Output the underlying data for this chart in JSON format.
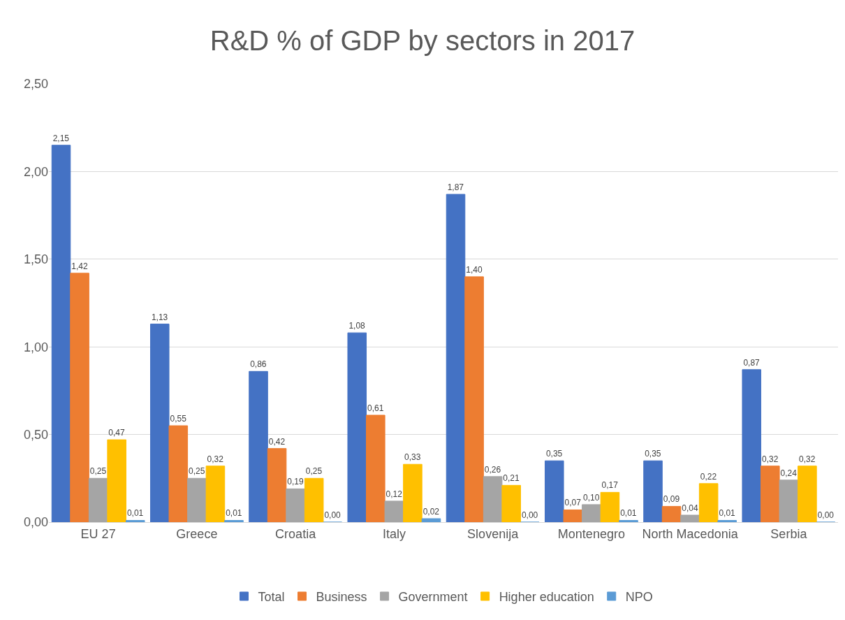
{
  "chart_data": {
    "type": "bar",
    "title": "R&D % of GDP by sectors in 2017",
    "categories": [
      "EU 27",
      "Greece",
      "Croatia",
      "Italy",
      "Slovenija",
      "Montenegro",
      "North Macedonia",
      "Serbia"
    ],
    "series": [
      {
        "name": "Total",
        "color": "#4472c4",
        "values": [
          2.15,
          1.13,
          0.86,
          1.08,
          1.87,
          0.35,
          0.35,
          0.87
        ],
        "value_labels": [
          "2,15",
          "1,13",
          "0,86",
          "1,08",
          "1,87",
          "0,35",
          "0,35",
          "0,87"
        ]
      },
      {
        "name": "Business",
        "color": "#ed7d31",
        "values": [
          1.42,
          0.55,
          0.42,
          0.61,
          1.4,
          0.07,
          0.09,
          0.32
        ],
        "value_labels": [
          "1,42",
          "0,55",
          "0,42",
          "0,61",
          "1,40",
          "0,07",
          "0,09",
          "0,32"
        ]
      },
      {
        "name": "Government",
        "color": "#a5a5a5",
        "values": [
          0.25,
          0.25,
          0.19,
          0.12,
          0.26,
          0.1,
          0.04,
          0.24
        ],
        "value_labels": [
          "0,25",
          "0,25",
          "0,19",
          "0,12",
          "0,26",
          "0,10",
          "0,04",
          "0,24"
        ]
      },
      {
        "name": "Higher education",
        "color": "#ffc000",
        "values": [
          0.47,
          0.32,
          0.25,
          0.33,
          0.21,
          0.17,
          0.22,
          0.32
        ],
        "value_labels": [
          "0,47",
          "0,32",
          "0,25",
          "0,33",
          "0,21",
          "0,17",
          "0,22",
          "0,32"
        ]
      },
      {
        "name": "NPO",
        "color": "#5b9bd5",
        "values": [
          0.01,
          0.01,
          0.0,
          0.02,
          0.0,
          0.01,
          0.01,
          0.0
        ],
        "value_labels": [
          "0,01",
          "0,01",
          "0,00",
          "0,02",
          "0,00",
          "0,01",
          "0,01",
          "0,00"
        ]
      }
    ],
    "ylim": [
      0,
      2.5
    ],
    "yticks": [
      {
        "value": 0,
        "label": "0,00"
      },
      {
        "value": 0.5,
        "label": "0,50"
      },
      {
        "value": 1,
        "label": "1,00"
      },
      {
        "value": 1.5,
        "label": "1,50"
      },
      {
        "value": 2,
        "label": "2,00"
      },
      {
        "value": 2.5,
        "label": "2,50"
      }
    ],
    "grid": "y",
    "legend": "bottom"
  }
}
